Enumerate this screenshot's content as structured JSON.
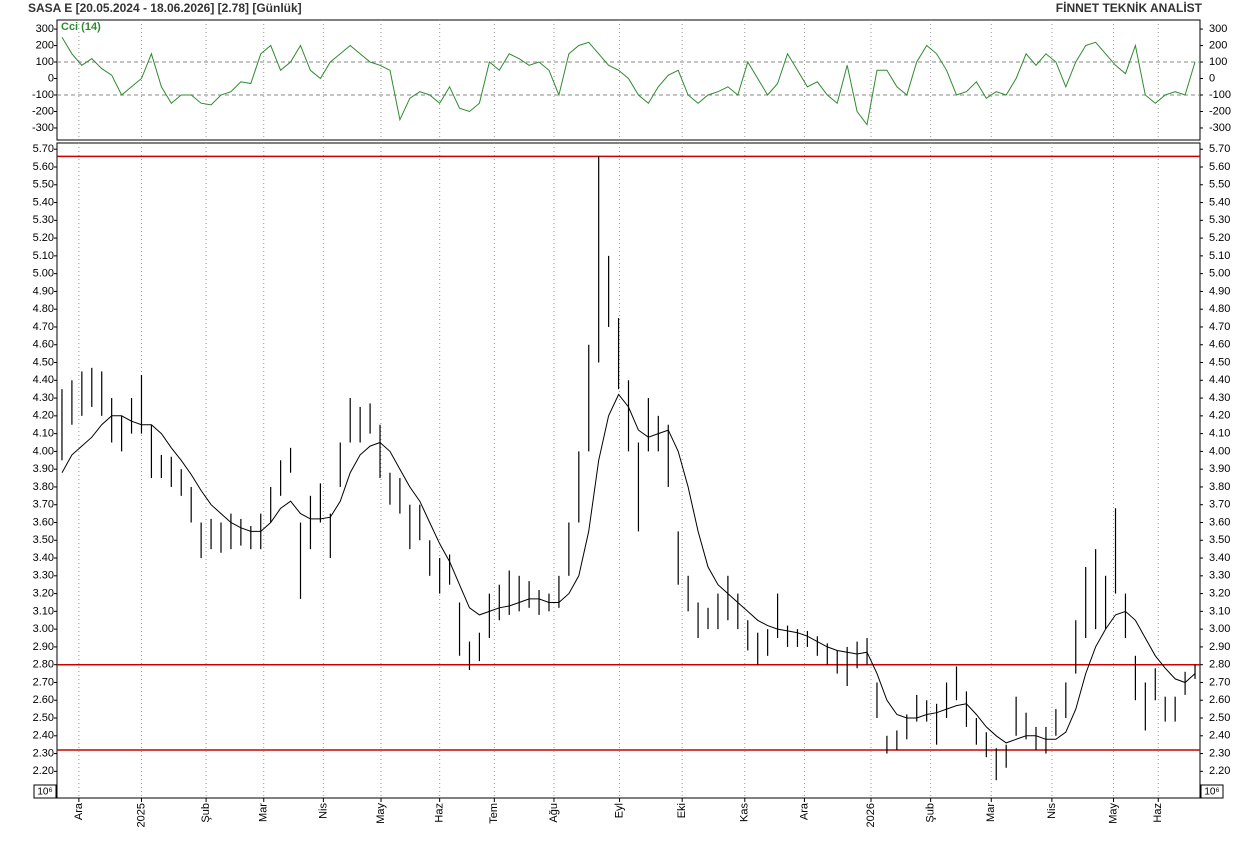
{
  "header": {
    "title": "SASA  E  [20.05.2024 - 18.06.2026]  [2.78]  [Günlük]",
    "brand": "FİNNET TEKNİK ANALİST"
  },
  "chart_data": [
    {
      "type": "line",
      "label": "Cci (14)",
      "color": "#2e8b2e",
      "values": [
        250,
        150,
        80,
        120,
        60,
        20,
        -100,
        -50,
        0,
        150,
        -50,
        -150,
        -100,
        -100,
        -150,
        -160,
        -100,
        -80,
        -20,
        -30,
        150,
        200,
        50,
        100,
        200,
        50,
        0,
        100,
        150,
        200,
        150,
        100,
        80,
        50,
        -250,
        -120,
        -80,
        -100,
        -150,
        -50,
        -180,
        -200,
        -150,
        100,
        50,
        150,
        120,
        80,
        100,
        50,
        -100,
        150,
        200,
        220,
        150,
        80,
        50,
        0,
        -100,
        -150,
        -50,
        20,
        50,
        -100,
        -150,
        -100,
        -80,
        -50,
        -100,
        100,
        0,
        -100,
        -30,
        150,
        50,
        -50,
        -20,
        -100,
        -150,
        80,
        -200,
        -280,
        50,
        50,
        -50,
        -100,
        100,
        200,
        150,
        50,
        -100,
        -80,
        -20,
        -120,
        -80,
        -100,
        0,
        150,
        80,
        150,
        100,
        -50,
        100,
        200,
        220,
        150,
        80,
        30,
        200,
        -100,
        -150,
        -100,
        -80,
        -100,
        100
      ],
      "ylim": [
        -373,
        355
      ],
      "yticks": [
        300,
        200,
        100,
        0,
        -100,
        -200,
        -300
      ],
      "dashed_levels": [
        100,
        -100
      ]
    },
    {
      "type": "ohlc",
      "color": "#000000",
      "scale_label": "10⁶",
      "high": [
        4.35,
        4.4,
        4.45,
        4.47,
        4.45,
        4.3,
        4.2,
        4.3,
        4.43,
        4.15,
        3.98,
        3.97,
        3.9,
        3.8,
        3.6,
        3.62,
        3.6,
        3.65,
        3.62,
        3.58,
        3.65,
        3.8,
        3.95,
        4.02,
        3.6,
        3.75,
        3.82,
        3.65,
        4.05,
        4.3,
        4.25,
        4.27,
        4.15,
        3.88,
        3.85,
        3.7,
        3.7,
        3.5,
        3.4,
        3.42,
        3.15,
        2.93,
        2.98,
        3.2,
        3.25,
        3.33,
        3.3,
        3.27,
        3.22,
        3.2,
        3.3,
        3.6,
        4.0,
        4.6,
        5.66,
        5.1,
        4.75,
        4.4,
        4.05,
        4.3,
        4.2,
        4.15,
        3.55,
        3.3,
        3.15,
        3.12,
        3.2,
        3.3,
        3.2,
        3.05,
        2.98,
        3.0,
        3.2,
        3.02,
        3.0,
        2.99,
        2.96,
        2.92,
        2.88,
        2.9,
        2.93,
        2.95,
        2.7,
        2.4,
        2.43,
        2.52,
        2.63,
        2.6,
        2.58,
        2.7,
        2.79,
        2.65,
        2.5,
        2.42,
        2.33,
        2.35,
        2.62,
        2.53,
        2.45,
        2.45,
        2.55,
        2.7,
        3.05,
        3.35,
        3.45,
        3.3,
        3.68,
        3.2,
        2.85,
        2.7,
        2.78,
        2.62,
        2.62,
        2.76,
        2.8
      ],
      "low": [
        3.95,
        4.15,
        4.2,
        4.25,
        4.2,
        4.05,
        4.0,
        4.1,
        4.1,
        3.85,
        3.85,
        3.8,
        3.75,
        3.6,
        3.4,
        3.45,
        3.43,
        3.45,
        3.47,
        3.45,
        3.45,
        3.6,
        3.75,
        3.88,
        3.17,
        3.45,
        3.6,
        3.4,
        3.8,
        4.05,
        4.05,
        4.1,
        3.85,
        3.7,
        3.65,
        3.45,
        3.5,
        3.3,
        3.2,
        3.25,
        2.85,
        2.77,
        2.82,
        2.95,
        3.05,
        3.08,
        3.1,
        3.12,
        3.08,
        3.1,
        3.12,
        3.3,
        3.6,
        4.0,
        4.5,
        4.7,
        4.35,
        4.0,
        3.55,
        4.0,
        4.0,
        3.8,
        3.25,
        3.1,
        2.95,
        3.0,
        3.0,
        3.05,
        3.0,
        2.88,
        2.8,
        2.85,
        2.95,
        2.9,
        2.9,
        2.9,
        2.85,
        2.8,
        2.75,
        2.68,
        2.78,
        2.8,
        2.5,
        2.3,
        2.32,
        2.38,
        2.48,
        2.48,
        2.35,
        2.5,
        2.6,
        2.45,
        2.35,
        2.28,
        2.15,
        2.22,
        2.4,
        2.38,
        2.32,
        2.3,
        2.4,
        2.5,
        2.75,
        2.95,
        3.0,
        3.0,
        3.2,
        2.95,
        2.6,
        2.43,
        2.6,
        2.48,
        2.48,
        2.63,
        2.72
      ],
      "moving_average": [
        3.88,
        3.98,
        4.03,
        4.08,
        4.15,
        4.2,
        4.2,
        4.17,
        4.15,
        4.15,
        4.1,
        4.02,
        3.95,
        3.87,
        3.78,
        3.7,
        3.65,
        3.6,
        3.57,
        3.55,
        3.55,
        3.6,
        3.68,
        3.72,
        3.65,
        3.62,
        3.62,
        3.63,
        3.72,
        3.88,
        3.98,
        4.03,
        4.05,
        4.0,
        3.9,
        3.8,
        3.72,
        3.6,
        3.48,
        3.38,
        3.25,
        3.12,
        3.08,
        3.1,
        3.12,
        3.13,
        3.15,
        3.17,
        3.17,
        3.15,
        3.15,
        3.2,
        3.3,
        3.55,
        3.95,
        4.2,
        4.32,
        4.25,
        4.12,
        4.08,
        4.1,
        4.12,
        4.0,
        3.8,
        3.55,
        3.35,
        3.25,
        3.2,
        3.15,
        3.1,
        3.05,
        3.02,
        3.0,
        2.99,
        2.98,
        2.96,
        2.93,
        2.9,
        2.88,
        2.87,
        2.86,
        2.87,
        2.75,
        2.6,
        2.52,
        2.5,
        2.5,
        2.52,
        2.53,
        2.55,
        2.57,
        2.58,
        2.52,
        2.45,
        2.4,
        2.36,
        2.38,
        2.4,
        2.4,
        2.38,
        2.38,
        2.42,
        2.55,
        2.75,
        2.9,
        3.0,
        3.08,
        3.1,
        3.05,
        2.95,
        2.85,
        2.78,
        2.72,
        2.7,
        2.75
      ],
      "hlines": [
        5.66,
        2.8,
        2.32
      ],
      "hline_color": "#cc0000",
      "ylim": [
        2.05,
        5.735
      ],
      "yticks": [
        {
          "value": 2.2,
          "label": "2.20"
        },
        {
          "value": 2.3,
          "label": "2.30"
        },
        {
          "value": 2.4,
          "label": "2.40"
        },
        {
          "value": 2.5,
          "label": "2.50"
        },
        {
          "value": 2.6,
          "label": "2.60"
        },
        {
          "value": 2.7,
          "label": "2.70"
        },
        {
          "value": 2.8,
          "label": "2.80"
        },
        {
          "value": 2.9,
          "label": "2.90"
        },
        {
          "value": 3.0,
          "label": "3.00"
        },
        {
          "value": 3.1,
          "label": "3.10"
        },
        {
          "value": 3.2,
          "label": "3.20"
        },
        {
          "value": 3.3,
          "label": "3.30"
        },
        {
          "value": 3.4,
          "label": "3.40"
        },
        {
          "value": 3.5,
          "label": "3.50"
        },
        {
          "value": 3.6,
          "label": "3.60"
        },
        {
          "value": 3.7,
          "label": "3.70"
        },
        {
          "value": 3.8,
          "label": "3.80"
        },
        {
          "value": 3.9,
          "label": "3.90"
        },
        {
          "value": 4.0,
          "label": "4.00"
        },
        {
          "value": 4.1,
          "label": "4.10"
        },
        {
          "value": 4.2,
          "label": "4.20"
        },
        {
          "value": 4.3,
          "label": "4.30"
        },
        {
          "value": 4.4,
          "label": "4.40"
        },
        {
          "value": 4.5,
          "label": "4.50"
        },
        {
          "value": 4.6,
          "label": "4.60"
        },
        {
          "value": 4.7,
          "label": "4.70"
        },
        {
          "value": 4.8,
          "label": "4.80"
        },
        {
          "value": 4.9,
          "label": "4.90"
        },
        {
          "value": 5.0,
          "label": "5.00"
        },
        {
          "value": 5.1,
          "label": "5.10"
        },
        {
          "value": 5.2,
          "label": "5.20"
        },
        {
          "value": 5.3,
          "label": "5.30"
        },
        {
          "value": 5.4,
          "label": "5.40"
        },
        {
          "value": 5.5,
          "label": "5.50"
        },
        {
          "value": 5.6,
          "label": "5.60"
        },
        {
          "value": 5.7,
          "label": "5.70"
        }
      ],
      "xlim": [
        -0.5,
        114.5
      ],
      "xticks": [
        {
          "value": 1.7,
          "label": "Ara"
        },
        {
          "value": 8.0,
          "label": "2025"
        },
        {
          "value": 14.5,
          "label": "Şub"
        },
        {
          "value": 20.3,
          "label": "Mar"
        },
        {
          "value": 26.3,
          "label": "Nis"
        },
        {
          "value": 32.1,
          "label": "May"
        },
        {
          "value": 38.0,
          "label": "Haz"
        },
        {
          "value": 43.5,
          "label": "Tem"
        },
        {
          "value": 49.5,
          "label": "Ağu"
        },
        {
          "value": 56.1,
          "label": "Eyl"
        },
        {
          "value": 62.4,
          "label": "Eki"
        },
        {
          "value": 68.7,
          "label": "Kas"
        },
        {
          "value": 74.7,
          "label": "Ara"
        },
        {
          "value": 81.4,
          "label": "2026"
        },
        {
          "value": 87.4,
          "label": "Şub"
        },
        {
          "value": 93.5,
          "label": "Mar"
        },
        {
          "value": 99.6,
          "label": "Nis"
        },
        {
          "value": 105.8,
          "label": "May"
        },
        {
          "value": 110.3,
          "label": "Haz"
        }
      ]
    }
  ]
}
